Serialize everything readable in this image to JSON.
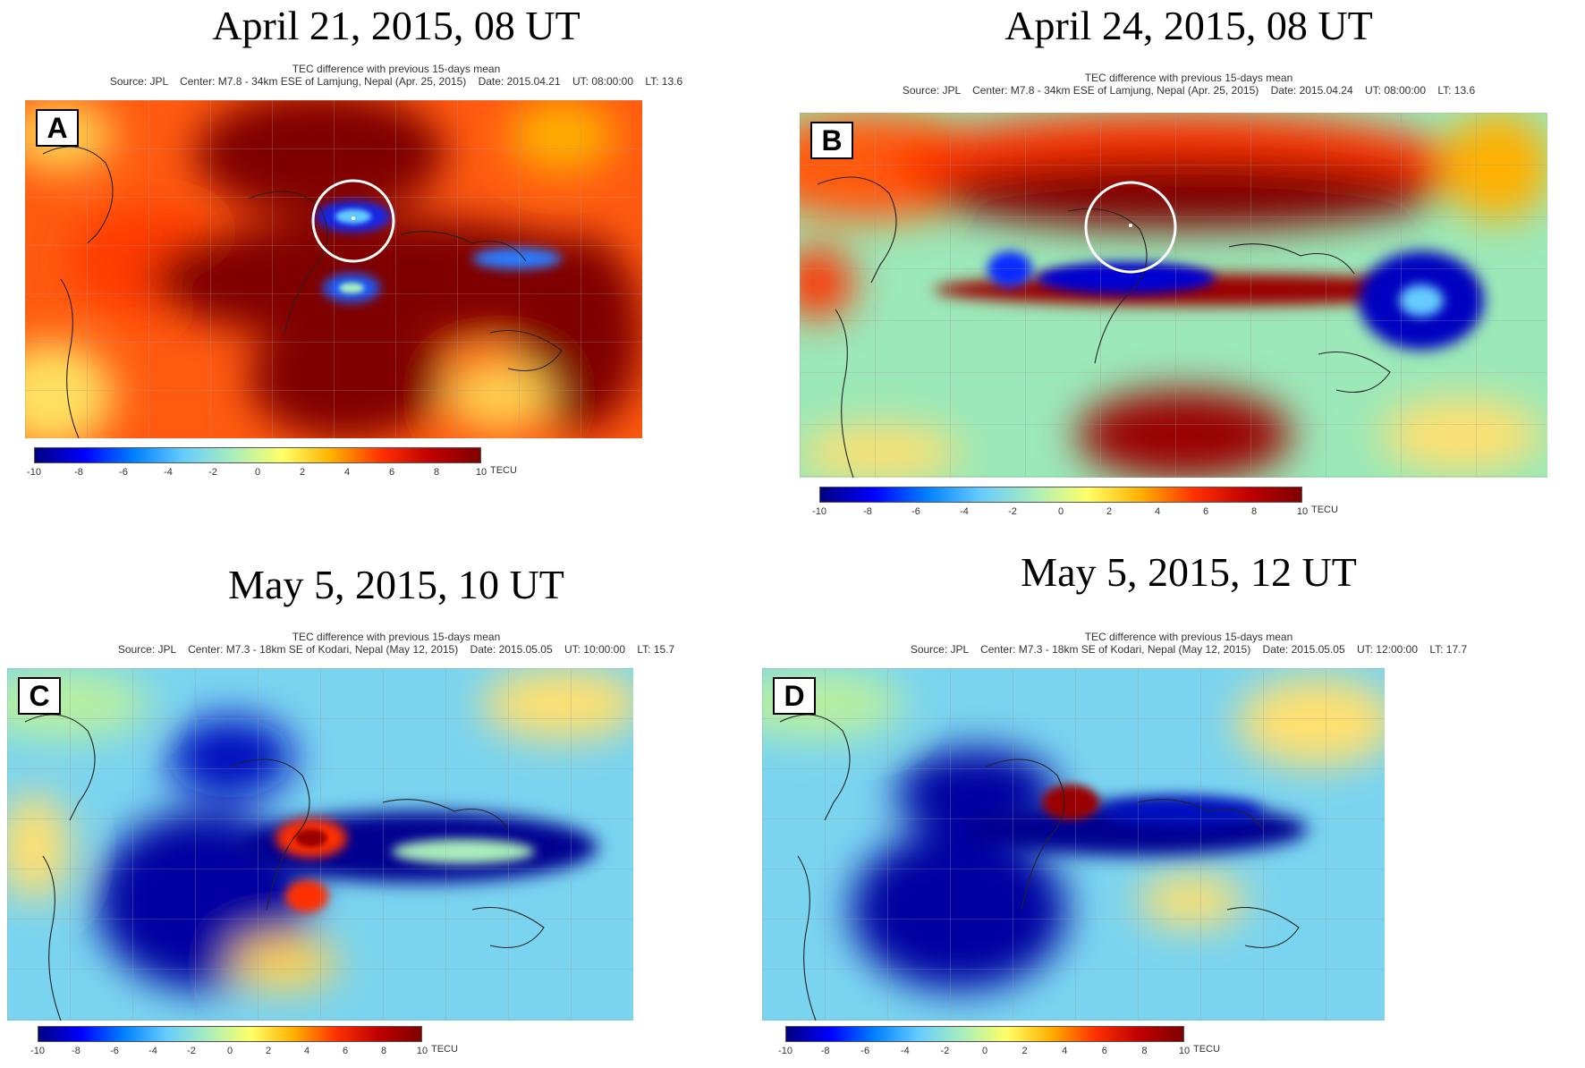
{
  "colorscale": {
    "stops": [
      "#00007f",
      "#0000ff",
      "#0080ff",
      "#66ccff",
      "#aaeebb",
      "#ffff66",
      "#ffb000",
      "#ff3000",
      "#c00000",
      "#7f0000"
    ],
    "ticks": [
      "-10",
      "-8",
      "-6",
      "-4",
      "-2",
      "0",
      "2",
      "4",
      "6",
      "8",
      "10"
    ],
    "unit": "TECU"
  },
  "panels": [
    {
      "letter": "A",
      "title": "April 21, 2015, 08 UT",
      "header_line1": "TEC difference with previous 15-days mean",
      "header_line2": "Source: JPL    Center: M7.8 - 34km ESE of Lamjung, Nepal (Apr. 25, 2015)    Date: 2015.04.21    UT: 08:00:00    LT: 13.6",
      "background_color": "#ff5a10",
      "has_epicenter_circle": true
    },
    {
      "letter": "B",
      "title": "April 24, 2015, 08 UT",
      "header_line1": "TEC difference with previous 15-days mean",
      "header_line2": "Source: JPL    Center: M7.8 - 34km ESE of Lamjung, Nepal (Apr. 25, 2015)    Date: 2015.04.24    UT: 08:00:00    LT: 13.6",
      "background_color": "#9ce8b8",
      "has_epicenter_circle": true
    },
    {
      "letter": "C",
      "title": "May 5, 2015, 10 UT",
      "header_line1": "TEC difference with previous 15-days mean",
      "header_line2": "Source: JPL    Center: M7.3 - 18km SE of Kodari, Nepal (May 12, 2015)    Date: 2015.05.05    UT: 10:00:00    LT: 15.7",
      "background_color": "#7ad4f0",
      "has_epicenter_circle": false
    },
    {
      "letter": "D",
      "title": "May 5, 2015, 12 UT",
      "header_line1": "TEC difference with previous 15-days mean",
      "header_line2": "Source: JPL    Center: M7.3 - 18km SE of Kodari, Nepal (May 12, 2015)    Date: 2015.05.05    UT: 12:00:00    LT: 17.7",
      "background_color": "#7ad4f0",
      "has_epicenter_circle": false
    }
  ]
}
